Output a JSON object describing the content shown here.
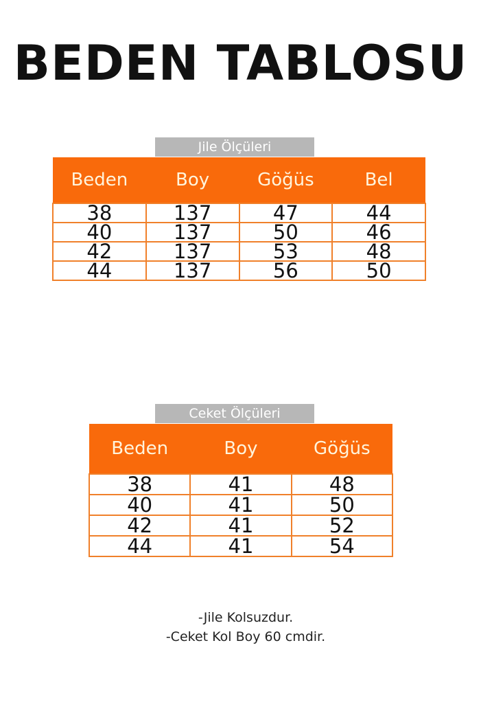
{
  "title": "BEDEN TABLOSU",
  "tables": [
    {
      "label": "Jile Ölçüleri",
      "headers": [
        "Beden",
        "Boy",
        "Göğüs",
        "Bel"
      ],
      "rows": [
        [
          "38",
          "137",
          "47",
          "44"
        ],
        [
          "40",
          "137",
          "50",
          "46"
        ],
        [
          "42",
          "137",
          "53",
          "48"
        ],
        [
          "44",
          "137",
          "56",
          "50"
        ]
      ]
    },
    {
      "label": "Ceket Ölçüleri",
      "headers": [
        "Beden",
        "Boy",
        "Göğüs"
      ],
      "rows": [
        [
          "38",
          "41",
          "48"
        ],
        [
          "40",
          "41",
          "50"
        ],
        [
          "42",
          "41",
          "52"
        ],
        [
          "44",
          "41",
          "54"
        ]
      ]
    }
  ],
  "notes": [
    "-Jile Kolsuzdur.",
    "-Ceket Kol Boy 60 cmdir."
  ],
  "colors": {
    "header": "#f96a0b",
    "label_bg": "#b7b7b7",
    "border": "#f0802a"
  }
}
